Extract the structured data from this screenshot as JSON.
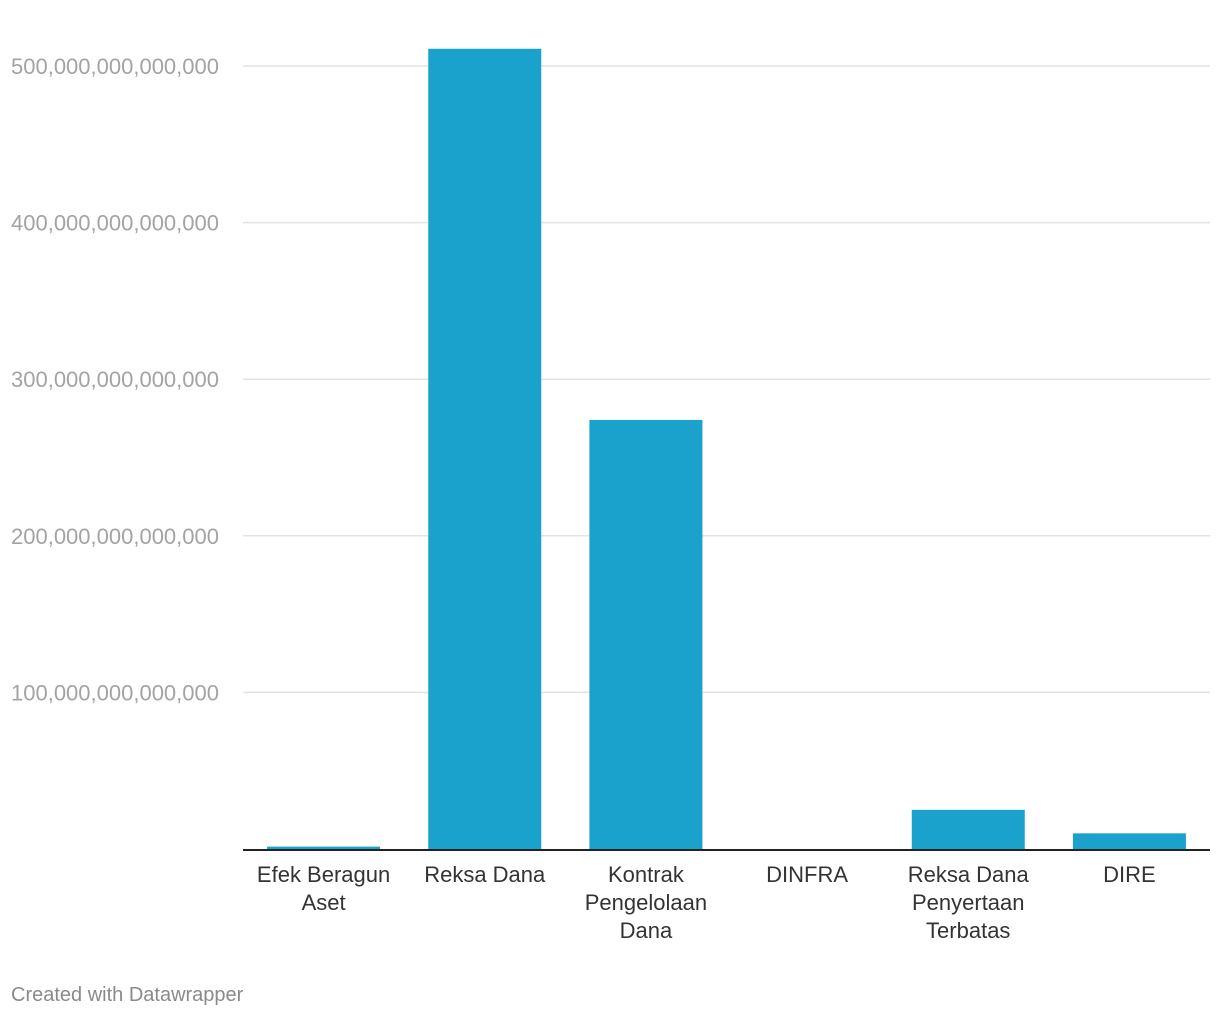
{
  "chart_data": {
    "type": "bar",
    "title": "",
    "xlabel": "",
    "ylabel": "",
    "categories": [
      "Efek Beragun Aset",
      "Reksa Dana",
      "Kontrak Pengelolaan Dana",
      "DINFRA",
      "Reksa Dana Penyertaan Terbatas",
      "DIRE"
    ],
    "category_lines": [
      [
        "Efek Beragun",
        "Aset"
      ],
      [
        "Reksa Dana"
      ],
      [
        "Kontrak",
        "Pengelolaan",
        "Dana"
      ],
      [
        "DINFRA"
      ],
      [
        "Reksa Dana",
        "Penyertaan",
        "Terbatas"
      ],
      [
        "DIRE"
      ]
    ],
    "values": [
      1500000000000,
      511000000000000,
      274000000000000,
      0,
      25000000000000,
      10000000000000
    ],
    "ylim": [
      0,
      500000000000000
    ],
    "yticks": [
      100000000000000,
      200000000000000,
      300000000000000,
      400000000000000,
      500000000000000
    ],
    "ytick_labels": [
      "100,000,000,000,000",
      "200,000,000,000,000",
      "300,000,000,000,000",
      "400,000,000,000,000",
      "500,000,000,000,000"
    ],
    "grid": true,
    "legend": "none",
    "bar_color": "#1aa1cc"
  },
  "footer": {
    "credit": "Created with Datawrapper"
  }
}
